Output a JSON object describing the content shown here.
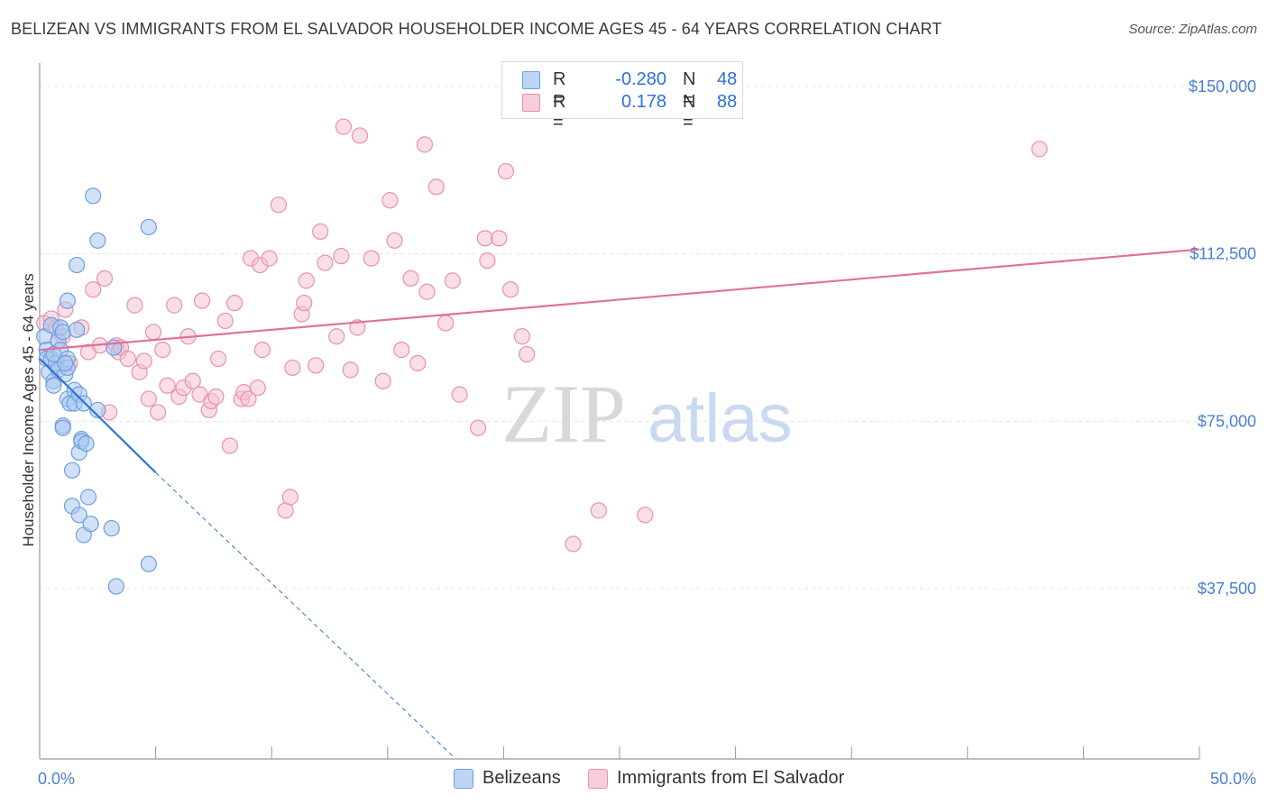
{
  "title": "BELIZEAN VS IMMIGRANTS FROM EL SALVADOR HOUSEHOLDER INCOME AGES 45 - 64 YEARS CORRELATION CHART",
  "source": "Source: ZipAtlas.com",
  "watermark": {
    "zip": "ZIP",
    "atlas": "atlas"
  },
  "colors": {
    "blue_fill": "#a9c8f0",
    "blue_stroke": "#6e9fe0",
    "blue_line": "#2f73d0",
    "pink_fill": "#f6c3d2",
    "pink_stroke": "#e891ad",
    "pink_line": "#e0709a",
    "tick_text": "#4a7fd0",
    "grid": "#e4e4e4"
  },
  "legend": {
    "rows": [
      {
        "r_label": "R =",
        "r_value": "-0.280",
        "n_label": "N =",
        "n_value": "48"
      },
      {
        "r_label": "R =",
        "r_value": "0.178",
        "n_label": "N =",
        "n_value": "88"
      }
    ]
  },
  "chart_data": {
    "type": "scatter",
    "title": "BELIZEAN VS IMMIGRANTS FROM EL SALVADOR HOUSEHOLDER INCOME AGES 45 - 64 YEARS CORRELATION CHART",
    "xlabel": "",
    "ylabel": "Householder Income Ages 45 - 64 years",
    "xlim": [
      0,
      50
    ],
    "ylim": [
      0,
      155000
    ],
    "x_tick_labels": [
      "0.0%",
      "50.0%"
    ],
    "y_ticks": [
      37500,
      75000,
      112500,
      150000
    ],
    "y_tick_labels": [
      "$37,500",
      "$75,000",
      "$112,500",
      "$150,000"
    ],
    "grid": true,
    "legend_position": "bottom",
    "series": [
      {
        "name": "Belizeans",
        "color": "blue",
        "trend": {
          "x0": 0.0,
          "y0": 89000,
          "x1": 5.0,
          "y1": 63500,
          "dash_to_x": 17.8,
          "dash_to_y": 0
        },
        "points": [
          [
            0.2,
            94000
          ],
          [
            0.3,
            91000
          ],
          [
            0.3,
            89000
          ],
          [
            0.4,
            86000
          ],
          [
            0.5,
            89000
          ],
          [
            0.5,
            96500
          ],
          [
            0.6,
            84000
          ],
          [
            0.6,
            83000
          ],
          [
            0.7,
            88000
          ],
          [
            0.8,
            86500
          ],
          [
            0.8,
            93000
          ],
          [
            0.9,
            91000
          ],
          [
            0.9,
            96000
          ],
          [
            1.0,
            95000
          ],
          [
            1.0,
            74000
          ],
          [
            1.0,
            73500
          ],
          [
            1.1,
            85500
          ],
          [
            1.2,
            89000
          ],
          [
            1.2,
            87000
          ],
          [
            1.2,
            102000
          ],
          [
            1.2,
            80000
          ],
          [
            1.3,
            79000
          ],
          [
            1.4,
            64000
          ],
          [
            1.4,
            56000
          ],
          [
            1.5,
            82000
          ],
          [
            1.5,
            79000
          ],
          [
            1.6,
            95500
          ],
          [
            1.6,
            110000
          ],
          [
            1.7,
            54000
          ],
          [
            1.7,
            81000
          ],
          [
            1.7,
            68000
          ],
          [
            1.8,
            71000
          ],
          [
            1.8,
            70500
          ],
          [
            1.9,
            79000
          ],
          [
            1.9,
            49500
          ],
          [
            2.0,
            70000
          ],
          [
            2.1,
            58000
          ],
          [
            2.2,
            52000
          ],
          [
            2.3,
            125500
          ],
          [
            2.5,
            115500
          ],
          [
            2.5,
            77500
          ],
          [
            3.1,
            51000
          ],
          [
            3.3,
            38000
          ],
          [
            3.2,
            91500
          ],
          [
            4.7,
            118500
          ],
          [
            4.7,
            43000
          ],
          [
            0.6,
            90000
          ],
          [
            1.1,
            88000
          ]
        ]
      },
      {
        "name": "Immigrants from El Salvador",
        "color": "pink",
        "trend": {
          "x0": 0.0,
          "y0": 91000,
          "x1": 50.0,
          "y1": 113500
        },
        "points": [
          [
            0.2,
            97000
          ],
          [
            0.5,
            98000
          ],
          [
            0.7,
            96000
          ],
          [
            0.8,
            93000
          ],
          [
            1.0,
            94000
          ],
          [
            1.1,
            100000
          ],
          [
            1.3,
            88000
          ],
          [
            1.8,
            96000
          ],
          [
            2.1,
            90500
          ],
          [
            2.3,
            104500
          ],
          [
            2.6,
            92000
          ],
          [
            2.8,
            107000
          ],
          [
            3.0,
            77000
          ],
          [
            3.3,
            92000
          ],
          [
            3.4,
            90500
          ],
          [
            3.5,
            91500
          ],
          [
            3.8,
            89000
          ],
          [
            4.1,
            101000
          ],
          [
            4.3,
            86000
          ],
          [
            4.5,
            88500
          ],
          [
            4.7,
            80000
          ],
          [
            4.9,
            95000
          ],
          [
            5.1,
            77000
          ],
          [
            5.3,
            91000
          ],
          [
            5.5,
            83000
          ],
          [
            5.8,
            101000
          ],
          [
            6.0,
            80500
          ],
          [
            6.2,
            82500
          ],
          [
            6.4,
            94000
          ],
          [
            6.6,
            84000
          ],
          [
            6.9,
            81000
          ],
          [
            7.0,
            102000
          ],
          [
            7.3,
            77500
          ],
          [
            7.4,
            79500
          ],
          [
            7.6,
            80500
          ],
          [
            7.7,
            89000
          ],
          [
            8.0,
            97500
          ],
          [
            8.2,
            69500
          ],
          [
            8.4,
            101500
          ],
          [
            8.7,
            80000
          ],
          [
            8.8,
            81500
          ],
          [
            9.0,
            80000
          ],
          [
            9.1,
            111500
          ],
          [
            9.4,
            82500
          ],
          [
            9.5,
            110000
          ],
          [
            9.6,
            91000
          ],
          [
            9.9,
            111500
          ],
          [
            10.3,
            123500
          ],
          [
            10.6,
            55000
          ],
          [
            10.8,
            58000
          ],
          [
            10.9,
            87000
          ],
          [
            11.3,
            99000
          ],
          [
            11.4,
            101500
          ],
          [
            11.5,
            106500
          ],
          [
            11.9,
            87500
          ],
          [
            12.1,
            117500
          ],
          [
            12.3,
            110500
          ],
          [
            12.8,
            94000
          ],
          [
            13.0,
            112000
          ],
          [
            13.1,
            141000
          ],
          [
            13.4,
            86500
          ],
          [
            13.7,
            96000
          ],
          [
            13.8,
            139000
          ],
          [
            14.3,
            111500
          ],
          [
            14.8,
            84000
          ],
          [
            15.1,
            124500
          ],
          [
            15.3,
            115500
          ],
          [
            15.6,
            91000
          ],
          [
            16.0,
            107000
          ],
          [
            16.3,
            88000
          ],
          [
            16.6,
            137000
          ],
          [
            16.7,
            104000
          ],
          [
            17.1,
            127500
          ],
          [
            17.5,
            97000
          ],
          [
            17.8,
            106500
          ],
          [
            18.1,
            81000
          ],
          [
            18.9,
            73500
          ],
          [
            19.2,
            116000
          ],
          [
            19.3,
            111000
          ],
          [
            19.8,
            116000
          ],
          [
            20.1,
            131000
          ],
          [
            20.3,
            104500
          ],
          [
            20.8,
            94000
          ],
          [
            21.0,
            90000
          ],
          [
            23.0,
            47500
          ],
          [
            24.1,
            55000
          ],
          [
            26.1,
            54000
          ],
          [
            43.1,
            136000
          ]
        ]
      }
    ]
  }
}
